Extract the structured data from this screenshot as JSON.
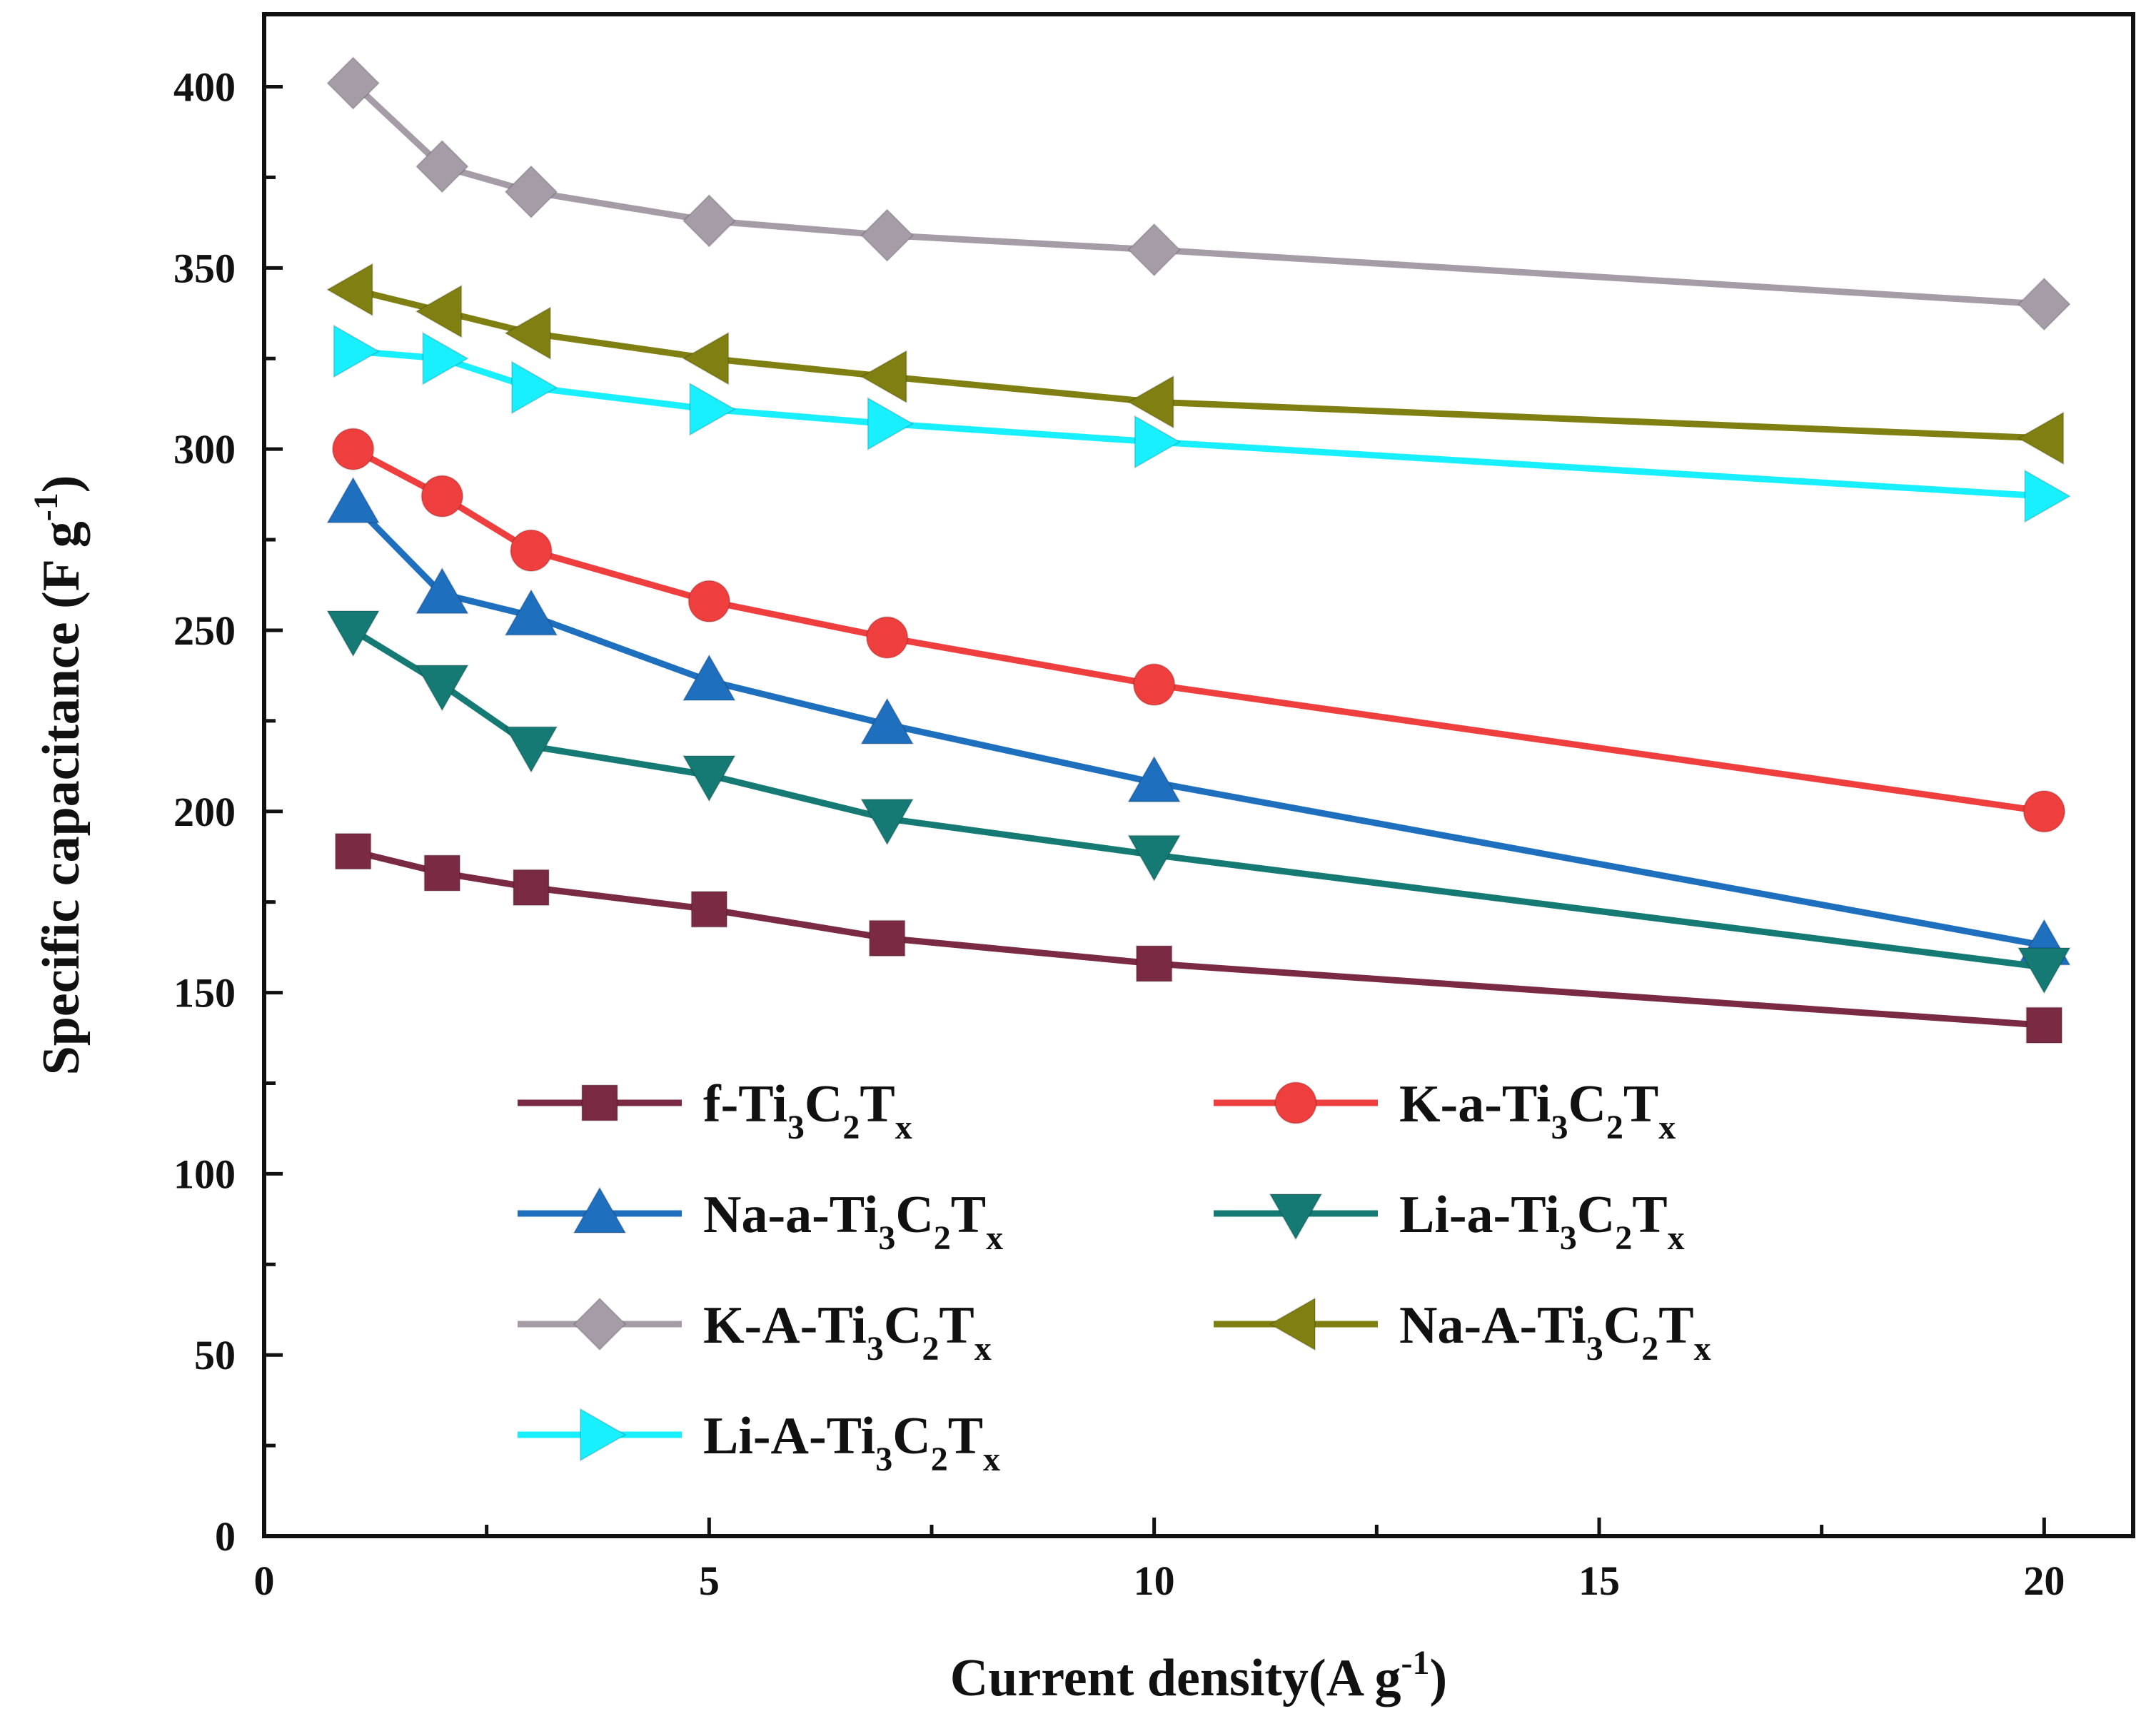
{
  "chart_data": {
    "type": "line",
    "xlabel": "Current density(A g",
    "xlabel_sup": "-1",
    "xlabel_end": ")",
    "ylabel": "Specific capacitance (F g",
    "ylabel_sup": "-1",
    "ylabel_end": ")",
    "xlim": [
      0,
      21
    ],
    "ylim": [
      0,
      420
    ],
    "xticks": [
      0,
      5,
      10,
      15,
      20
    ],
    "yticks": [
      0,
      50,
      100,
      150,
      200,
      250,
      300,
      350,
      400
    ],
    "x": [
      1,
      2,
      3,
      5,
      7,
      10,
      20
    ],
    "series": [
      {
        "name": "f-Ti3C2Tx",
        "prefix": "f-Ti",
        "color": "#7b2a43",
        "marker": "square",
        "values": [
          189,
          183,
          179,
          173,
          165,
          158,
          141
        ]
      },
      {
        "name": "K-a-Ti3C2Tx",
        "prefix": "K-a-Ti",
        "color": "#ef3e3e",
        "marker": "circle",
        "values": [
          300,
          287,
          272,
          258,
          248,
          235,
          200
        ]
      },
      {
        "name": "Na-a-Ti3C2Tx",
        "prefix": "Na-a-Ti",
        "color": "#1f6fbf",
        "marker": "triangle-up",
        "values": [
          285,
          260,
          254,
          236,
          224,
          208,
          163
        ]
      },
      {
        "name": "Li-a-Ti3C2Tx",
        "prefix": "Li-a-Ti",
        "color": "#167a74",
        "marker": "triangle-down",
        "values": [
          250,
          235,
          218,
          210,
          198,
          188,
          157
        ]
      },
      {
        "name": "K-A-Ti3C2Tx",
        "prefix": "K-A-Ti",
        "color": "#a59ca8",
        "marker": "diamond",
        "values": [
          401,
          378,
          371,
          363,
          359,
          355,
          340
        ]
      },
      {
        "name": "Na-A-Ti3C2Tx",
        "prefix": "Na-A-Ti",
        "color": "#7f7f12",
        "marker": "triangle-left",
        "values": [
          344,
          338,
          332,
          325,
          320,
          313,
          303
        ]
      },
      {
        "name": "Li-A-Ti3C2Tx",
        "prefix": "Li-A-Ti",
        "color": "#19f0ff",
        "marker": "triangle-right",
        "values": [
          327,
          325,
          317,
          311,
          307,
          302,
          287
        ]
      }
    ],
    "legend_position": "lower-left, two columns"
  }
}
